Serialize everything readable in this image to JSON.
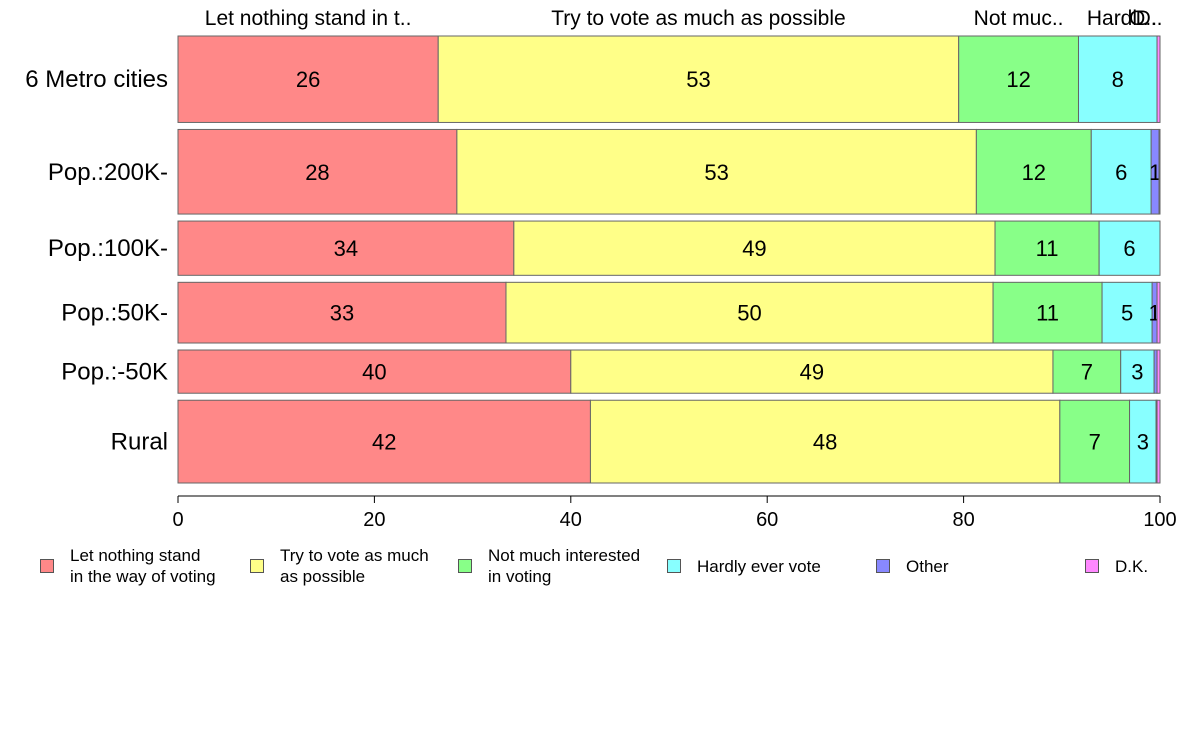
{
  "chart_data": {
    "type": "bar",
    "orientation": "horizontal",
    "stacked": true,
    "categories": [
      "6 Metro cities",
      "Pop.:200K-",
      "Pop.:100K-",
      "Pop.:50K-",
      "Pop.:-50K",
      "Rural"
    ],
    "series": [
      {
        "name": "Let nothing stand\nin the way of voting",
        "top_label": "Let nothing stand in t..",
        "color": "#ff8888",
        "values": [
          26.5,
          28.4,
          34.2,
          33.4,
          40.0,
          42.0
        ]
      },
      {
        "name": "Try to vote as much\nas possible",
        "top_label": "Try to vote as much as possible",
        "color": "#ffff88",
        "values": [
          53.0,
          52.9,
          49.0,
          49.6,
          49.1,
          47.8
        ]
      },
      {
        "name": "Not much interested\nin voting",
        "top_label": "Not muc..",
        "color": "#88ff88",
        "values": [
          12.2,
          11.7,
          10.6,
          11.1,
          6.9,
          7.1
        ]
      },
      {
        "name": "Hardly ever vote",
        "top_label": "Hardl..",
        "color": "#88ffff",
        "values": [
          8.0,
          6.1,
          6.2,
          5.1,
          3.4,
          2.7
        ]
      },
      {
        "name": "Other",
        "top_label": "O..",
        "color": "#8888ff",
        "values": [
          0.0,
          0.8,
          0.0,
          0.5,
          0.3,
          0.1
        ]
      },
      {
        "name": "D.K.",
        "top_label": "D..",
        "color": "#ff88ff",
        "values": [
          0.3,
          0.1,
          0.0,
          0.3,
          0.3,
          0.3
        ]
      }
    ],
    "bar_labels": [
      [
        "26",
        "53",
        "12",
        "8",
        "",
        ""
      ],
      [
        "28",
        "53",
        "12",
        "6",
        "1",
        ""
      ],
      [
        "34",
        "49",
        "11",
        "6",
        "",
        ""
      ],
      [
        "33",
        "50",
        "11",
        "5",
        "1",
        ""
      ],
      [
        "40",
        "49",
        "7",
        "3",
        "",
        ""
      ],
      [
        "42",
        "48",
        "7",
        "3",
        "",
        ""
      ]
    ],
    "row_weights": [
      940,
      920,
      590,
      660,
      470,
      900
    ],
    "xlim": [
      0,
      100
    ],
    "xticks": [
      "0",
      "20",
      "40",
      "60",
      "80",
      "100"
    ],
    "grid": false,
    "legend_position": "bottom"
  }
}
